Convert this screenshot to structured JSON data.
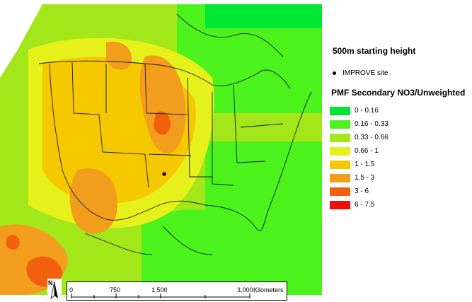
{
  "map": {
    "heading": "500m starting height",
    "site_legend_label": "IMPROVE site",
    "legend_title": "PMF Secondary NO3/Unweighted",
    "legend": [
      {
        "label": "0 - 0.16",
        "color": "#00e633"
      },
      {
        "label": "0.16 - 0.33",
        "color": "#4cf21c"
      },
      {
        "label": "0.33 - 0.66",
        "color": "#a3e619"
      },
      {
        "label": "0.66 - 1",
        "color": "#e6f01a"
      },
      {
        "label": "1 - 1.5",
        "color": "#f5c800"
      },
      {
        "label": "1.5 - 3",
        "color": "#f29e1c"
      },
      {
        "label": "3 - 6",
        "color": "#f2600d"
      },
      {
        "label": "6 - 7.5",
        "color": "#f20d0d"
      }
    ],
    "scale": {
      "labels": [
        "0",
        "750",
        "1,500",
        "3,000"
      ],
      "unit": "Kilometers"
    },
    "north_label": "N"
  }
}
